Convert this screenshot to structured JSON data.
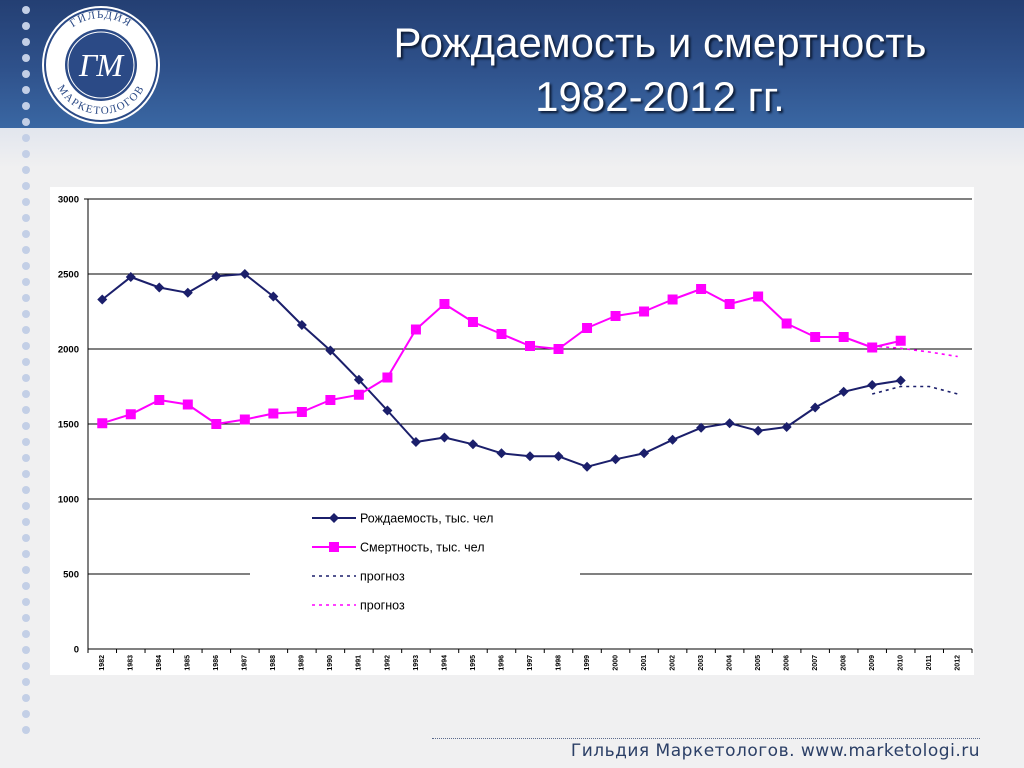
{
  "slide": {
    "title_line1": "Рождаемость и смертность",
    "title_line2": "1982-2012 гг.",
    "footer": "Гильдия Маркетологов. www.marketologi.ru"
  },
  "logo": {
    "ring_text": "ГИЛЬДИЯ МАРКЕТОЛОГОВ",
    "monogram": "ГМ"
  },
  "colors": {
    "header": "#2f528c",
    "births": "#1b1f6b",
    "deaths": "#ff00ff"
  },
  "chart_data": {
    "type": "line",
    "title": "",
    "xlabel": "",
    "ylabel": "",
    "ylim": [
      0,
      3000
    ],
    "yticks": [
      0,
      500,
      1000,
      1500,
      2000,
      2500,
      3000
    ],
    "grid": true,
    "categories": [
      "1982",
      "1983",
      "1984",
      "1985",
      "1986",
      "1987",
      "1988",
      "1989",
      "1990",
      "1991",
      "1992",
      "1993",
      "1994",
      "1995",
      "1996",
      "1997",
      "1998",
      "1999",
      "2000",
      "2001",
      "2002",
      "2003",
      "2004",
      "2005",
      "2006",
      "2007",
      "2008",
      "2009",
      "2010",
      "2011",
      "2012"
    ],
    "series": [
      {
        "name": "Рождаемость, тыс. чел",
        "color": "#1b1f6b",
        "marker": "diamond",
        "values": [
          2330,
          2480,
          2410,
          2375,
          2485,
          2500,
          2350,
          2160,
          1990,
          1795,
          1590,
          1380,
          1410,
          1365,
          1305,
          1285,
          1285,
          1215,
          1265,
          1305,
          1395,
          1475,
          1505,
          1455,
          1480,
          1610,
          1715,
          1760,
          1790,
          null,
          null
        ]
      },
      {
        "name": "Смертность, тыс. чел",
        "color": "#ff00ff",
        "marker": "square",
        "values": [
          1505,
          1565,
          1660,
          1630,
          1500,
          1530,
          1570,
          1580,
          1660,
          1695,
          1810,
          2130,
          2300,
          2180,
          2100,
          2020,
          2000,
          2140,
          2220,
          2250,
          2330,
          2400,
          2300,
          2350,
          2170,
          2080,
          2080,
          2010,
          2055,
          null,
          null
        ]
      },
      {
        "name": "прогноз",
        "color": "#1b1f6b",
        "dashed": true,
        "values": [
          null,
          null,
          null,
          null,
          null,
          null,
          null,
          null,
          null,
          null,
          null,
          null,
          null,
          null,
          null,
          null,
          null,
          null,
          null,
          null,
          null,
          null,
          null,
          null,
          null,
          null,
          null,
          1700,
          1750,
          1750,
          1700
        ]
      },
      {
        "name": "прогноз",
        "color": "#ff00ff",
        "dashed": true,
        "values": [
          null,
          null,
          null,
          null,
          null,
          null,
          null,
          null,
          null,
          null,
          null,
          null,
          null,
          null,
          null,
          null,
          null,
          null,
          null,
          null,
          null,
          null,
          null,
          null,
          null,
          null,
          null,
          2020,
          2005,
          1980,
          1950
        ]
      }
    ],
    "legend_position": "center"
  }
}
